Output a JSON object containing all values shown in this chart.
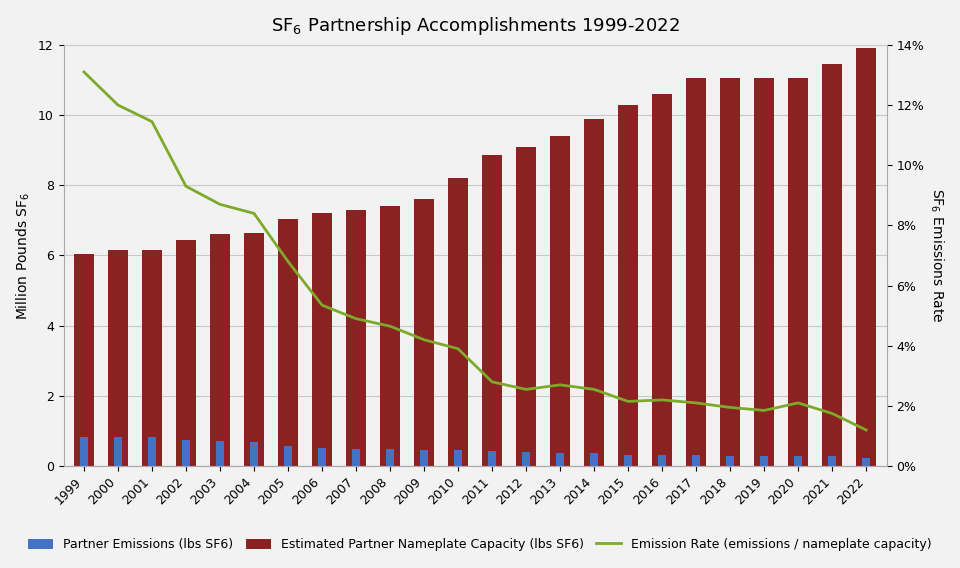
{
  "years": [
    1999,
    2000,
    2001,
    2002,
    2003,
    2004,
    2005,
    2006,
    2007,
    2008,
    2009,
    2010,
    2011,
    2012,
    2013,
    2014,
    2015,
    2016,
    2017,
    2018,
    2019,
    2020,
    2021,
    2022
  ],
  "partner_emissions": [
    0.82,
    0.82,
    0.82,
    0.75,
    0.72,
    0.68,
    0.58,
    0.52,
    0.5,
    0.48,
    0.45,
    0.45,
    0.42,
    0.4,
    0.38,
    0.37,
    0.33,
    0.32,
    0.32,
    0.3,
    0.28,
    0.3,
    0.28,
    0.22
  ],
  "nameplate_capacity": [
    6.05,
    6.15,
    6.15,
    6.45,
    6.6,
    6.65,
    7.05,
    7.2,
    7.3,
    7.4,
    7.6,
    8.2,
    8.85,
    9.1,
    9.4,
    9.9,
    10.3,
    10.6,
    11.05,
    11.05,
    11.05,
    11.05,
    11.45,
    11.9
  ],
  "emission_rate": [
    0.131,
    0.12,
    0.1145,
    0.093,
    0.087,
    0.084,
    0.068,
    0.0535,
    0.049,
    0.0465,
    0.042,
    0.039,
    0.028,
    0.0255,
    0.027,
    0.0255,
    0.0215,
    0.022,
    0.021,
    0.0195,
    0.0185,
    0.021,
    0.0175,
    0.012
  ],
  "bar_color_blue": "#4472c4",
  "bar_color_red": "#8b2222",
  "line_color_green": "#7daa2a",
  "title": "SF$_6$ Partnership Accomplishments 1999-2022",
  "ylabel_left": "Million Pounds SF$_6$",
  "ylabel_right": "SF$_6$ Emissions Rate",
  "ylim_left": [
    0,
    12
  ],
  "ylim_right": [
    0,
    0.14
  ],
  "yticks_left": [
    0,
    2,
    4,
    6,
    8,
    10,
    12
  ],
  "yticks_right": [
    0,
    0.02,
    0.04,
    0.06,
    0.08,
    0.1,
    0.12,
    0.14
  ],
  "legend_labels": [
    "Partner Emissions (lbs SF6)",
    "Estimated Partner Nameplate Capacity (lbs SF6)",
    "Emission Rate (emissions / nameplate capacity)"
  ],
  "background_color": "#f2f2f2",
  "plot_bg_color": "#f2f2f2",
  "title_fontsize": 13,
  "axis_label_fontsize": 10,
  "tick_fontsize": 9,
  "legend_fontsize": 9,
  "red_bar_width": 0.6,
  "blue_bar_width": 0.25
}
